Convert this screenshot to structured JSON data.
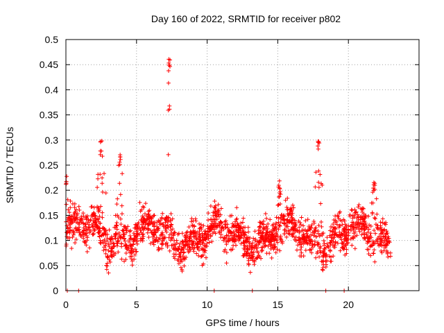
{
  "chart_data": {
    "type": "scatter",
    "title": "Day 160 of 2022, SRMTID for receiver p802",
    "xlabel": "GPS time / hours",
    "ylabel": "SRMTID / TECUs",
    "xlim": [
      0,
      25
    ],
    "ylim": [
      0,
      0.5
    ],
    "x_ticks": [
      0,
      5,
      10,
      15,
      20
    ],
    "y_ticks": [
      0,
      0.05,
      0.1,
      0.15,
      0.2,
      0.25,
      0.3,
      0.35,
      0.4,
      0.45,
      0.5
    ],
    "x_tick_labels": [
      "0",
      "5",
      "10",
      "15",
      "20"
    ],
    "y_tick_labels": [
      "0",
      "0.05",
      "0.1",
      "0.15",
      "0.2",
      "0.25",
      "0.3",
      "0.35",
      "0.4",
      "0.45",
      "0.5"
    ],
    "grid": true,
    "marker": "plus",
    "series_color": "#ff0000",
    "x_range_hours": [
      0,
      23
    ],
    "baseline_mean": 0.11,
    "baseline_spread": 0.035,
    "zero_markers_x": [
      0.1,
      0.9,
      10.5,
      13.2,
      18.4,
      19.7
    ],
    "peaks": [
      {
        "x": 0.0,
        "y": 0.23,
        "width": 0.35
      },
      {
        "x": 2.5,
        "y": 0.3,
        "width": 0.35
      },
      {
        "x": 3.8,
        "y": 0.28,
        "width": 0.4
      },
      {
        "x": 7.3,
        "y": 0.47,
        "width": 0.3
      },
      {
        "x": 15.1,
        "y": 0.22,
        "width": 0.3
      },
      {
        "x": 17.9,
        "y": 0.3,
        "width": 0.35
      },
      {
        "x": 21.8,
        "y": 0.22,
        "width": 0.4
      }
    ]
  }
}
